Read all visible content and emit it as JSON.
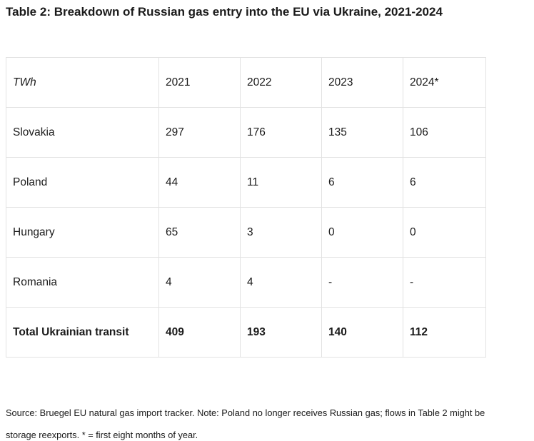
{
  "title": "Table 2: Breakdown of Russian gas entry into the EU via Ukraine, 2021-2024",
  "table": {
    "header": [
      "TWh",
      "2021",
      "2022",
      "2023",
      "2024*"
    ],
    "rows": [
      [
        "Slovakia",
        "297",
        "176",
        "135",
        "106"
      ],
      [
        "Poland",
        "44",
        "11",
        "6",
        "6"
      ],
      [
        "Hungary",
        "65",
        "3",
        "0",
        "0"
      ],
      [
        "Romania",
        "4",
        "4",
        "-",
        "-"
      ]
    ],
    "total": [
      "Total Ukrainian transit",
      "409",
      "193",
      "140",
      "112"
    ]
  },
  "note": {
    "line1": "Source: Bruegel EU natural gas import tracker. Note: Poland no longer receives Russian gas; flows in Table 2 might be",
    "line2": "storage reexports. * = first eight months of year."
  }
}
